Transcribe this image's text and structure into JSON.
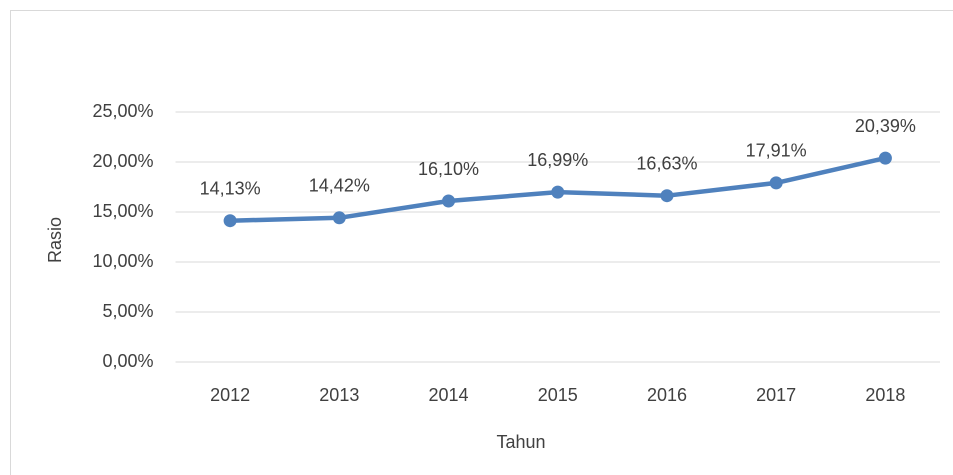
{
  "chart_data": {
    "type": "line",
    "categories": [
      "2012",
      "2013",
      "2014",
      "2015",
      "2016",
      "2017",
      "2018"
    ],
    "series": [
      {
        "name": "Rasio",
        "color": "#4f81bd",
        "values": [
          14.13,
          14.42,
          16.1,
          16.99,
          16.63,
          17.91,
          20.39
        ],
        "value_labels": [
          "14,13%",
          "14,42%",
          "16,10%",
          "16,99%",
          "16,63%",
          "17,91%",
          "20,39%"
        ]
      }
    ],
    "ylim": [
      0,
      25
    ],
    "yticks": [
      {
        "value": 0,
        "label": "0,00%"
      },
      {
        "value": 5,
        "label": "5,00%"
      },
      {
        "value": 10,
        "label": "10,00%"
      },
      {
        "value": 15,
        "label": "15,00%"
      },
      {
        "value": 20,
        "label": "20,00%"
      },
      {
        "value": 25,
        "label": "25,00%"
      }
    ],
    "y_label": "Rasio",
    "x_label": "Tahun",
    "grid": true
  }
}
